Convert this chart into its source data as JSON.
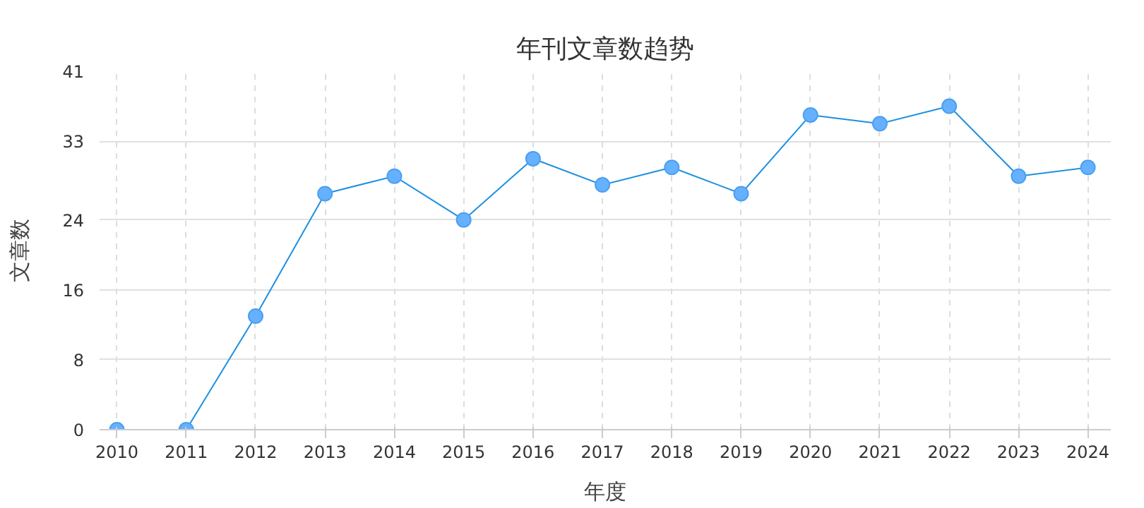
{
  "chart_data": {
    "type": "line",
    "title": "年刊文章数趋势",
    "xlabel": "年度",
    "ylabel": "文章数",
    "categories": [
      "2010",
      "2011",
      "2012",
      "2013",
      "2014",
      "2015",
      "2016",
      "2017",
      "2018",
      "2019",
      "2020",
      "2021",
      "2022",
      "2023",
      "2024"
    ],
    "series": [
      {
        "color": "#1e90e0",
        "values": [
          0,
          0,
          13,
          27,
          29,
          24,
          31,
          28,
          30,
          27,
          36,
          35,
          37,
          29,
          30
        ]
      }
    ],
    "ylim": [
      0,
      41
    ],
    "yticks": [
      0,
      8,
      16,
      24,
      33,
      41
    ],
    "grid": true,
    "marker": "circle",
    "line_style": "solid"
  }
}
